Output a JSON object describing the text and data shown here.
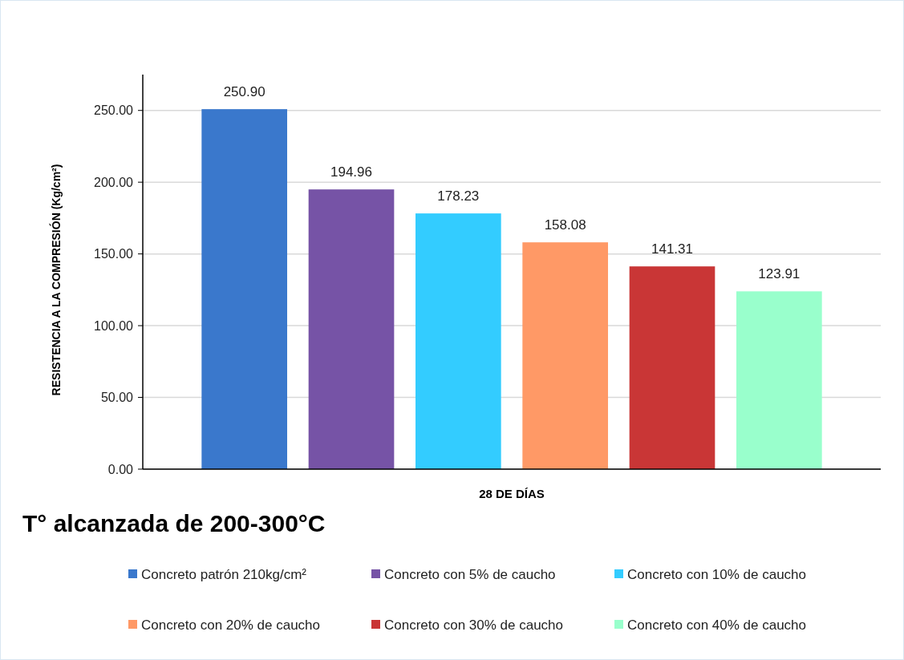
{
  "chart_data": {
    "type": "bar",
    "title": "T° alcanzada de 200-300°C",
    "ylabel": "RESISTENCIA A LA COMPRESIÓN (Kg/cm²)",
    "categories": [
      "28 DE DÍAS"
    ],
    "series": [
      {
        "name": "Concreto patrón 210kg/cm²",
        "color": "#3a78cc",
        "values": [
          250.9
        ],
        "value_labels": [
          "250.90"
        ]
      },
      {
        "name": "Concreto con 5% de caucho",
        "color": "#7653a6",
        "values": [
          194.96
        ],
        "value_labels": [
          "194.96"
        ]
      },
      {
        "name": "Concreto con 10% de caucho",
        "color": "#33ccff",
        "values": [
          178.23
        ],
        "value_labels": [
          "178.23"
        ]
      },
      {
        "name": "Concreto con 20% de caucho",
        "color": "#ff9966",
        "values": [
          158.08
        ],
        "value_labels": [
          "158.08"
        ]
      },
      {
        "name": "Concreto con 30% de caucho",
        "color": "#c93636",
        "values": [
          141.31
        ],
        "value_labels": [
          "141.31"
        ]
      },
      {
        "name": "Concreto con 40% de caucho",
        "color": "#99ffcc",
        "values": [
          123.91
        ],
        "value_labels": [
          "123.91"
        ]
      }
    ],
    "ylim": [
      0,
      275
    ],
    "yticks": [
      {
        "value": 0,
        "label": "0.00"
      },
      {
        "value": 50,
        "label": "50.00"
      },
      {
        "value": 100,
        "label": "100.00"
      },
      {
        "value": 150,
        "label": "150.00"
      },
      {
        "value": 200,
        "label": "200.00"
      },
      {
        "value": 250,
        "label": "250.00"
      }
    ],
    "grid": "y",
    "legend": "bottom"
  }
}
